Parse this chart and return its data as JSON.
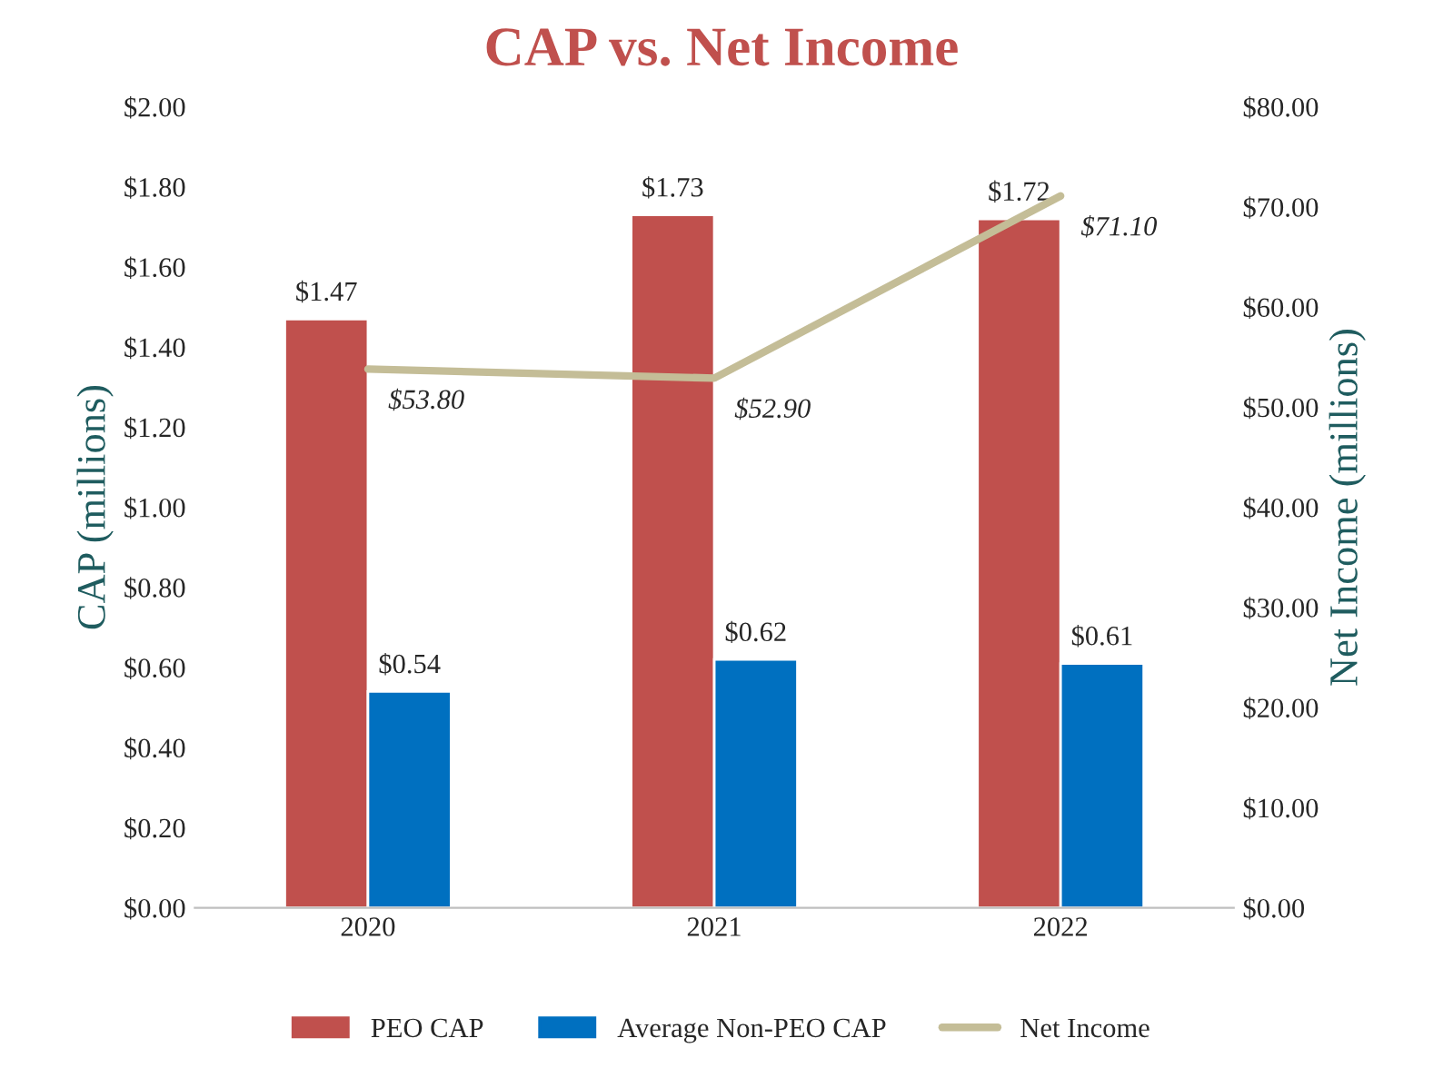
{
  "chart_data": {
    "type": "bar",
    "title": "CAP vs. Net Income",
    "ylabel": "CAP (millions)",
    "y2label": "Net Income (millions)",
    "categories": [
      "2020",
      "2021",
      "2022"
    ],
    "series": [
      {
        "name": "PEO CAP",
        "color": "#c0504d",
        "values": [
          1.47,
          1.73,
          1.72
        ],
        "value_labels": [
          "$1.47",
          "$1.73",
          "$1.72"
        ]
      },
      {
        "name": "Average Non-PEO CAP",
        "color": "#0070c0",
        "values": [
          0.54,
          0.62,
          0.61
        ],
        "value_labels": [
          "$0.54",
          "$0.62",
          "$0.61"
        ]
      },
      {
        "name": "Net Income",
        "type": "line",
        "axis": "y2",
        "color": "#c4bd97",
        "values": [
          53.8,
          52.9,
          71.1
        ],
        "value_labels": [
          "$53.80",
          "$52.90",
          "$71.10"
        ]
      }
    ],
    "ylim": [
      0,
      2
    ],
    "yticks": [
      {
        "value": 0,
        "label": "$0.00"
      },
      {
        "value": 0.2,
        "label": "$0.20"
      },
      {
        "value": 0.4,
        "label": "$0.40"
      },
      {
        "value": 0.6,
        "label": "$0.60"
      },
      {
        "value": 0.8,
        "label": "$0.80"
      },
      {
        "value": 1.0,
        "label": "$1.00"
      },
      {
        "value": 1.2,
        "label": "$1.20"
      },
      {
        "value": 1.4,
        "label": "$1.40"
      },
      {
        "value": 1.6,
        "label": "$1.60"
      },
      {
        "value": 1.8,
        "label": "$1.80"
      },
      {
        "value": 2.0,
        "label": "$2.00"
      }
    ],
    "y2lim": [
      0,
      80
    ],
    "y2ticks": [
      {
        "value": 0,
        "label": "$0.00"
      },
      {
        "value": 10,
        "label": "$10.00"
      },
      {
        "value": 20,
        "label": "$20.00"
      },
      {
        "value": 30,
        "label": "$30.00"
      },
      {
        "value": 40,
        "label": "$40.00"
      },
      {
        "value": 50,
        "label": "$50.00"
      },
      {
        "value": 60,
        "label": "$60.00"
      },
      {
        "value": 70,
        "label": "$70.00"
      },
      {
        "value": 80,
        "label": "$80.00"
      }
    ],
    "grid": false,
    "legend": "bottom"
  }
}
